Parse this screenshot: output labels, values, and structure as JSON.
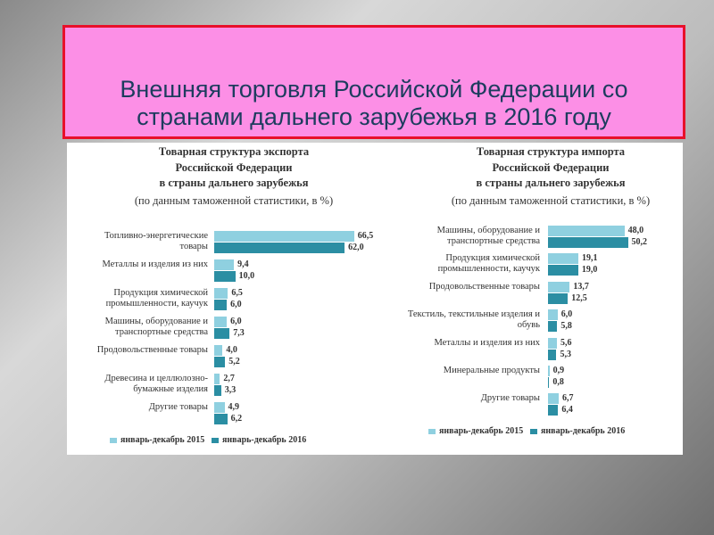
{
  "slide": {
    "title": "Внешняя торговля Российской Федерации со странами дальнего зарубежья в 2016 году"
  },
  "chart_data": [
    {
      "type": "bar",
      "orientation": "horizontal",
      "title": [
        "Товарная структура экспорта",
        "Российской Федерации",
        "в страны дальнего зарубежья"
      ],
      "subtitle": "(по данным таможенной статистики, в %)",
      "categories": [
        "Топливно-энергетические товары",
        "Металлы и изделия из них",
        "Продукция химической промышленности, каучук",
        "Машины, оборудование и транспортные средства",
        "Продовольственные товары",
        "Древесина и целлюлозно-бумажные изделия",
        "Другие товары"
      ],
      "series": [
        {
          "name": "январь-декабрь 2015",
          "color": "#8fd0e0",
          "values": [
            66.5,
            9.4,
            6.5,
            6.0,
            4.0,
            2.7,
            4.9
          ],
          "value_labels": [
            "66,5",
            "9,4",
            "6,5",
            "6,0",
            "4,0",
            "2,7",
            "4,9"
          ]
        },
        {
          "name": "январь-декабрь 2016",
          "color": "#2b8ea3",
          "values": [
            62.0,
            10.0,
            6.0,
            7.3,
            5.2,
            3.3,
            6.2
          ],
          "value_labels": [
            "62,0",
            "10,0",
            "6,0",
            "7,3",
            "5,2",
            "3,3",
            "6,2"
          ]
        }
      ],
      "xlim": [
        0,
        70
      ]
    },
    {
      "type": "bar",
      "orientation": "horizontal",
      "title": [
        "Товарная структура импорта",
        "Российской Федерации",
        "в страны дальнего зарубежья"
      ],
      "subtitle": "(по данным таможенной статистики, в %)",
      "categories": [
        "Машины, оборудование и транспортные средства",
        "Продукция химической промышленности, каучук",
        "Продовольственные товары",
        "Текстиль, текстильные изделия и обувь",
        "Металлы и изделия из них",
        "Минеральные продукты",
        "Другие товары"
      ],
      "series": [
        {
          "name": "январь-декабрь 2015",
          "color": "#8fd0e0",
          "values": [
            48.0,
            19.1,
            13.7,
            6.0,
            5.6,
            0.9,
            6.7
          ],
          "value_labels": [
            "48,0",
            "19,1",
            "13,7",
            "6,0",
            "5,6",
            "0,9",
            "6,7"
          ]
        },
        {
          "name": "январь-декабрь 2016",
          "color": "#2b8ea3",
          "values": [
            50.2,
            19.0,
            12.5,
            5.8,
            5.3,
            0.8,
            6.4
          ],
          "value_labels": [
            "50,2",
            "19,0",
            "12,5",
            "5,8",
            "5,3",
            "0,8",
            "6,4"
          ]
        }
      ],
      "xlim": [
        0,
        60
      ]
    }
  ]
}
